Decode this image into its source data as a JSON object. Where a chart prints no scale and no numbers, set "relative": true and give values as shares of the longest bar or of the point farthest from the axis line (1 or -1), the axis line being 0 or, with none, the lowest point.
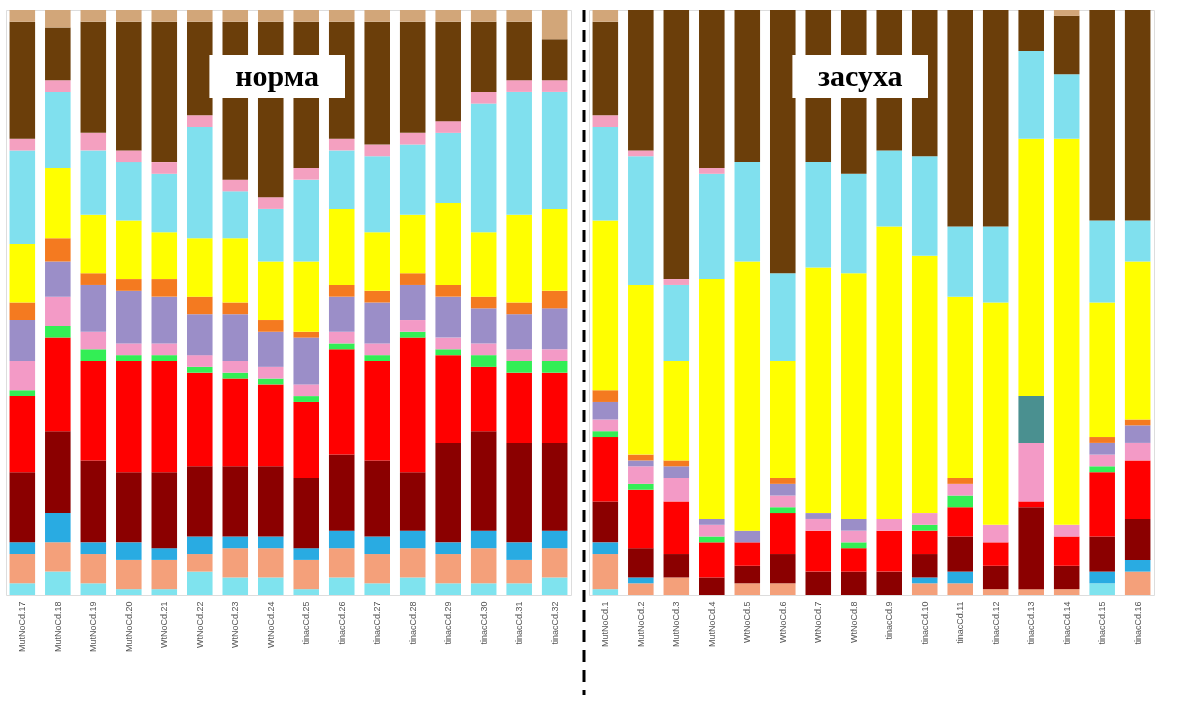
{
  "chart_data": [
    {
      "type": "bar",
      "stacked": true,
      "relative": true,
      "annotations": [
        "норма"
      ],
      "categories": [
        "MutNoCd.17",
        "MutNoCd.18",
        "MutNoCd.19",
        "MutNoCd.20",
        "WtNoCd.21",
        "WtNoCd.22",
        "WtNoCd.23",
        "WtNoCd.24",
        "tinacCd.25",
        "tinacCd.26",
        "tinacCd.27",
        "tinacCd.28",
        "tinacCd.29",
        "tinacCd.30",
        "tinacCd.31",
        "tinacCd.32"
      ],
      "series": [
        {
          "color": "#7fe3ee",
          "values": [
            0.02,
            0.04,
            0.02,
            0.01,
            0.01,
            0.04,
            0.03,
            0.03,
            0.01,
            0.03,
            0.02,
            0.03,
            0.02,
            0.02,
            0.02,
            0.03
          ]
        },
        {
          "color": "#f4a07a",
          "values": [
            0.05,
            0.05,
            0.05,
            0.05,
            0.05,
            0.03,
            0.05,
            0.05,
            0.05,
            0.05,
            0.05,
            0.05,
            0.05,
            0.06,
            0.04,
            0.05
          ]
        },
        {
          "color": "#29abe2",
          "values": [
            0.02,
            0.05,
            0.02,
            0.03,
            0.02,
            0.03,
            0.02,
            0.02,
            0.02,
            0.03,
            0.03,
            0.03,
            0.02,
            0.03,
            0.03,
            0.03
          ]
        },
        {
          "color": "#8b0000",
          "values": [
            0.12,
            0.14,
            0.14,
            0.12,
            0.13,
            0.12,
            0.12,
            0.12,
            0.12,
            0.13,
            0.13,
            0.1,
            0.17,
            0.17,
            0.17,
            0.15
          ]
        },
        {
          "color": "#ff0000",
          "values": [
            0.13,
            0.16,
            0.17,
            0.19,
            0.19,
            0.16,
            0.15,
            0.14,
            0.13,
            0.18,
            0.17,
            0.23,
            0.15,
            0.11,
            0.12,
            0.12
          ]
        },
        {
          "color": "#33ee55",
          "values": [
            0.01,
            0.02,
            0.02,
            0.01,
            0.01,
            0.01,
            0.01,
            0.01,
            0.01,
            0.01,
            0.01,
            0.01,
            0.01,
            0.02,
            0.02,
            0.02
          ]
        },
        {
          "color": "#f39ac6",
          "values": [
            0.05,
            0.05,
            0.03,
            0.02,
            0.02,
            0.02,
            0.02,
            0.02,
            0.02,
            0.02,
            0.02,
            0.02,
            0.02,
            0.02,
            0.02,
            0.02
          ]
        },
        {
          "color": "#9b8ec8",
          "values": [
            0.07,
            0.06,
            0.08,
            0.09,
            0.08,
            0.07,
            0.08,
            0.06,
            0.08,
            0.06,
            0.07,
            0.06,
            0.07,
            0.06,
            0.06,
            0.07
          ]
        },
        {
          "color": "#f47a20",
          "values": [
            0.03,
            0.04,
            0.02,
            0.02,
            0.03,
            0.03,
            0.02,
            0.02,
            0.01,
            0.02,
            0.02,
            0.02,
            0.02,
            0.02,
            0.02,
            0.03
          ]
        },
        {
          "color": "#ffff00",
          "values": [
            0.1,
            0.12,
            0.1,
            0.1,
            0.08,
            0.1,
            0.11,
            0.1,
            0.12,
            0.13,
            0.1,
            0.1,
            0.14,
            0.11,
            0.15,
            0.14
          ]
        },
        {
          "color": "#80e0ee",
          "values": [
            0.16,
            0.13,
            0.11,
            0.1,
            0.1,
            0.19,
            0.08,
            0.09,
            0.14,
            0.1,
            0.13,
            0.12,
            0.12,
            0.22,
            0.21,
            0.2
          ]
        },
        {
          "color": "#f4a0c0",
          "values": [
            0.02,
            0.02,
            0.03,
            0.02,
            0.02,
            0.02,
            0.02,
            0.02,
            0.02,
            0.02,
            0.02,
            0.02,
            0.02,
            0.02,
            0.02,
            0.02
          ]
        },
        {
          "color": "#6b3e0a",
          "values": [
            0.2,
            0.09,
            0.19,
            0.22,
            0.24,
            0.16,
            0.27,
            0.3,
            0.25,
            0.2,
            0.21,
            0.19,
            0.17,
            0.12,
            0.1,
            0.07
          ]
        },
        {
          "color": "#d2a679",
          "values": [
            0.02,
            0.03,
            0.02,
            0.02,
            0.02,
            0.02,
            0.02,
            0.02,
            0.02,
            0.02,
            0.02,
            0.02,
            0.02,
            0.02,
            0.02,
            0.05
          ]
        }
      ]
    },
    {
      "type": "bar",
      "stacked": true,
      "relative": true,
      "annotations": [
        "засуха"
      ],
      "categories": [
        "MutNoCd.1",
        "MutNoCd.2",
        "MutNoCd.3",
        "MutNoCd.4",
        "WtNoCd.5",
        "WtNoCd.6",
        "WtNoCd.7",
        "WtNoCd.8",
        "tinacCd.9",
        "tinacCd.10",
        "tinacCd.11",
        "tinacCd.12",
        "tinacCd.13",
        "tinacCd.14",
        "tinacCd.15",
        "tinacCd.16"
      ],
      "series": [
        {
          "color": "#7fe3ee",
          "values": [
            0.01,
            null,
            null,
            null,
            null,
            null,
            null,
            null,
            null,
            null,
            null,
            null,
            null,
            null,
            0.02,
            null
          ]
        },
        {
          "color": "#f4a07a",
          "values": [
            0.06,
            0.02,
            0.03,
            null,
            0.02,
            0.02,
            null,
            null,
            null,
            0.02,
            0.02,
            0.01,
            0.01,
            0.01,
            null,
            0.04
          ]
        },
        {
          "color": "#29abe2",
          "values": [
            0.02,
            0.01,
            null,
            null,
            null,
            null,
            null,
            null,
            null,
            0.01,
            0.02,
            null,
            null,
            null,
            0.02,
            0.02
          ]
        },
        {
          "color": "#8b0000",
          "values": [
            0.07,
            0.05,
            0.04,
            0.03,
            0.03,
            0.05,
            0.04,
            0.04,
            0.04,
            0.04,
            0.06,
            0.04,
            0.14,
            0.04,
            0.06,
            0.07
          ]
        },
        {
          "color": "#ff0000",
          "values": [
            0.11,
            0.1,
            0.09,
            0.06,
            0.04,
            0.07,
            0.07,
            0.04,
            0.07,
            0.04,
            0.05,
            0.04,
            0.01,
            0.05,
            0.11,
            0.1
          ]
        },
        {
          "color": "#33ee55",
          "values": [
            0.01,
            0.01,
            null,
            0.01,
            null,
            0.01,
            null,
            0.01,
            null,
            0.01,
            0.02,
            null,
            null,
            null,
            0.01,
            null
          ]
        },
        {
          "color": "#f39ac6",
          "values": [
            0.02,
            0.03,
            0.04,
            0.02,
            null,
            0.02,
            0.02,
            0.02,
            0.02,
            0.02,
            0.02,
            0.03,
            0.1,
            0.02,
            0.02,
            0.03
          ]
        },
        {
          "color": "#9b8ec8",
          "values": [
            0.03,
            0.01,
            0.02,
            0.01,
            0.02,
            0.02,
            0.01,
            0.02,
            null,
            null,
            null,
            null,
            null,
            null,
            0.02,
            0.03
          ]
        },
        {
          "color": "#4a9090",
          "values": [
            null,
            null,
            null,
            null,
            null,
            null,
            null,
            null,
            null,
            null,
            null,
            null,
            0.08,
            null,
            null,
            null
          ]
        },
        {
          "color": "#f47a20",
          "values": [
            0.02,
            0.01,
            0.01,
            null,
            null,
            0.01,
            null,
            null,
            null,
            null,
            0.01,
            null,
            null,
            null,
            0.01,
            0.01
          ]
        },
        {
          "color": "#ffff00",
          "values": [
            0.29,
            0.29,
            0.17,
            0.41,
            0.46,
            0.2,
            0.42,
            0.42,
            0.5,
            0.44,
            0.31,
            0.38,
            0.44,
            0.66,
            0.23,
            0.27
          ]
        },
        {
          "color": "#80e0ee",
          "values": [
            0.16,
            0.22,
            0.13,
            0.18,
            0.17,
            0.15,
            0.18,
            0.17,
            0.13,
            0.17,
            0.12,
            0.13,
            0.15,
            0.11,
            0.14,
            0.07
          ]
        },
        {
          "color": "#f4a0c0",
          "values": [
            0.02,
            0.01,
            0.01,
            0.01,
            null,
            null,
            null,
            null,
            null,
            null,
            null,
            null,
            null,
            null,
            null,
            null
          ]
        },
        {
          "color": "#6b3e0a",
          "values": [
            0.16,
            0.24,
            0.46,
            0.27,
            0.26,
            0.45,
            0.26,
            0.28,
            0.24,
            0.25,
            0.37,
            0.37,
            0.07,
            0.1,
            0.36,
            0.36
          ]
        },
        {
          "color": "#d2a679",
          "values": [
            0.02,
            null,
            null,
            null,
            null,
            null,
            null,
            null,
            null,
            null,
            null,
            null,
            null,
            0.01,
            null,
            null
          ]
        }
      ]
    }
  ]
}
